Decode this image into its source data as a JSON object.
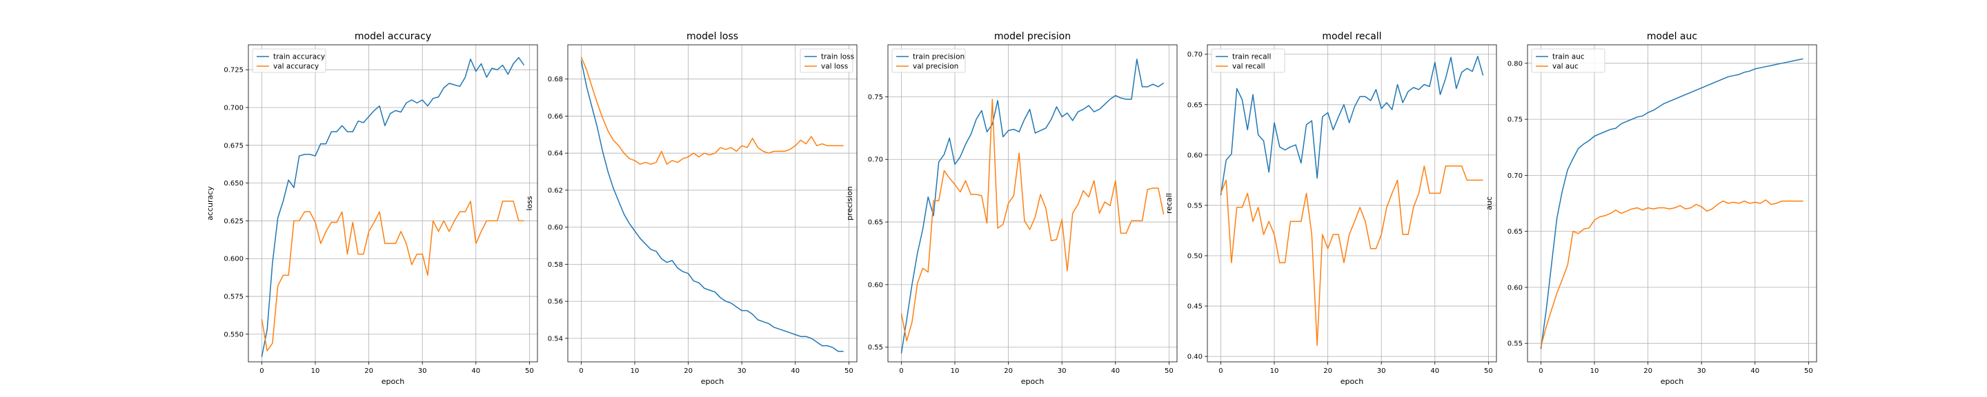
{
  "chart_data": [
    {
      "type": "line",
      "title": "model accuracy",
      "xlabel": "epoch",
      "ylabel": "accuracy",
      "xlim": [
        -2.5,
        51.5
      ],
      "ylim": [
        0.5317,
        0.7415
      ],
      "xticks": [
        0,
        10,
        20,
        30,
        40,
        50
      ],
      "yticks": [
        0.55,
        0.575,
        0.6,
        0.625,
        0.65,
        0.675,
        0.7,
        0.725
      ],
      "ytick_decimals": 3,
      "grid": true,
      "legend_position": "top-left",
      "x": [
        0,
        1,
        2,
        3,
        4,
        5,
        6,
        7,
        8,
        9,
        10,
        11,
        12,
        13,
        14,
        15,
        16,
        17,
        18,
        19,
        20,
        21,
        22,
        23,
        24,
        25,
        26,
        27,
        28,
        29,
        30,
        31,
        32,
        33,
        34,
        35,
        36,
        37,
        38,
        39,
        40,
        41,
        42,
        43,
        44,
        45,
        46,
        47,
        48,
        49
      ],
      "series": [
        {
          "name": "train accuracy",
          "color": "#1f77b4",
          "values": [
            0.535,
            0.553,
            0.597,
            0.627,
            0.638,
            0.652,
            0.647,
            0.668,
            0.669,
            0.669,
            0.668,
            0.676,
            0.676,
            0.684,
            0.684,
            0.688,
            0.684,
            0.684,
            0.691,
            0.69,
            0.694,
            0.698,
            0.701,
            0.688,
            0.696,
            0.698,
            0.697,
            0.703,
            0.705,
            0.703,
            0.705,
            0.701,
            0.706,
            0.707,
            0.713,
            0.716,
            0.715,
            0.714,
            0.72,
            0.732,
            0.724,
            0.729,
            0.72,
            0.726,
            0.725,
            0.728,
            0.722,
            0.729,
            0.733,
            0.728
          ]
        },
        {
          "name": "val accuracy",
          "color": "#ff7f0e",
          "values": [
            0.56,
            0.539,
            0.544,
            0.582,
            0.589,
            0.589,
            0.625,
            0.625,
            0.631,
            0.631,
            0.624,
            0.61,
            0.618,
            0.624,
            0.624,
            0.631,
            0.603,
            0.624,
            0.603,
            0.603,
            0.618,
            0.624,
            0.631,
            0.61,
            0.61,
            0.61,
            0.618,
            0.61,
            0.596,
            0.603,
            0.603,
            0.589,
            0.625,
            0.618,
            0.625,
            0.618,
            0.625,
            0.631,
            0.631,
            0.638,
            0.61,
            0.618,
            0.625,
            0.625,
            0.625,
            0.638,
            0.638,
            0.638,
            0.625,
            0.625
          ]
        }
      ]
    },
    {
      "type": "line",
      "title": "model loss",
      "xlabel": "epoch",
      "ylabel": "loss",
      "xlim": [
        -2.5,
        51.5
      ],
      "ylim": [
        0.5273,
        0.6985
      ],
      "xticks": [
        0,
        10,
        20,
        30,
        40,
        50
      ],
      "yticks": [
        0.54,
        0.56,
        0.58,
        0.6,
        0.62,
        0.64,
        0.66,
        0.68
      ],
      "ytick_decimals": 2,
      "grid": true,
      "legend_position": "top-right",
      "x": [
        0,
        1,
        2,
        3,
        4,
        5,
        6,
        7,
        8,
        9,
        10,
        11,
        12,
        13,
        14,
        15,
        16,
        17,
        18,
        19,
        20,
        21,
        22,
        23,
        24,
        25,
        26,
        27,
        28,
        29,
        30,
        31,
        32,
        33,
        34,
        35,
        36,
        37,
        38,
        39,
        40,
        41,
        42,
        43,
        44,
        45,
        46,
        47,
        48,
        49
      ],
      "series": [
        {
          "name": "train loss",
          "color": "#1f77b4",
          "values": [
            0.69,
            0.676,
            0.665,
            0.654,
            0.641,
            0.63,
            0.621,
            0.614,
            0.607,
            0.602,
            0.598,
            0.594,
            0.591,
            0.588,
            0.587,
            0.583,
            0.581,
            0.582,
            0.578,
            0.576,
            0.575,
            0.571,
            0.57,
            0.567,
            0.566,
            0.565,
            0.562,
            0.56,
            0.559,
            0.557,
            0.555,
            0.555,
            0.553,
            0.55,
            0.549,
            0.548,
            0.546,
            0.545,
            0.544,
            0.543,
            0.542,
            0.541,
            0.541,
            0.54,
            0.538,
            0.536,
            0.536,
            0.535,
            0.533,
            0.533
          ]
        },
        {
          "name": "val loss",
          "color": "#ff7f0e",
          "values": [
            0.692,
            0.685,
            0.676,
            0.667,
            0.659,
            0.652,
            0.647,
            0.644,
            0.64,
            0.637,
            0.636,
            0.634,
            0.635,
            0.634,
            0.635,
            0.641,
            0.634,
            0.636,
            0.635,
            0.637,
            0.638,
            0.64,
            0.638,
            0.64,
            0.639,
            0.64,
            0.643,
            0.642,
            0.643,
            0.641,
            0.644,
            0.643,
            0.648,
            0.643,
            0.641,
            0.64,
            0.641,
            0.641,
            0.641,
            0.642,
            0.644,
            0.647,
            0.645,
            0.649,
            0.644,
            0.645,
            0.644,
            0.644,
            0.644,
            0.644
          ]
        }
      ]
    },
    {
      "type": "line",
      "title": "model precision",
      "xlabel": "epoch",
      "ylabel": "precision",
      "xlim": [
        -2.5,
        51.5
      ],
      "ylim": [
        0.5383,
        0.7915
      ],
      "xticks": [
        0,
        10,
        20,
        30,
        40,
        50
      ],
      "yticks": [
        0.55,
        0.6,
        0.65,
        0.7,
        0.75
      ],
      "ytick_decimals": 2,
      "grid": true,
      "legend_position": "top-left",
      "x": [
        0,
        1,
        2,
        3,
        4,
        5,
        6,
        7,
        8,
        9,
        10,
        11,
        12,
        13,
        14,
        15,
        16,
        17,
        18,
        19,
        20,
        21,
        22,
        23,
        24,
        25,
        26,
        27,
        28,
        29,
        30,
        31,
        32,
        33,
        34,
        35,
        36,
        37,
        38,
        39,
        40,
        41,
        42,
        43,
        44,
        45,
        46,
        47,
        48,
        49
      ],
      "series": [
        {
          "name": "train precision",
          "color": "#1f77b4",
          "values": [
            0.545,
            0.572,
            0.6,
            0.625,
            0.644,
            0.67,
            0.655,
            0.698,
            0.704,
            0.717,
            0.696,
            0.702,
            0.712,
            0.72,
            0.732,
            0.739,
            0.722,
            0.728,
            0.747,
            0.718,
            0.723,
            0.724,
            0.722,
            0.732,
            0.74,
            0.721,
            0.723,
            0.725,
            0.732,
            0.742,
            0.734,
            0.737,
            0.731,
            0.738,
            0.74,
            0.743,
            0.738,
            0.74,
            0.744,
            0.748,
            0.751,
            0.749,
            0.748,
            0.748,
            0.78,
            0.758,
            0.758,
            0.76,
            0.758,
            0.761
          ]
        },
        {
          "name": "val precision",
          "color": "#ff7f0e",
          "values": [
            0.577,
            0.555,
            0.57,
            0.601,
            0.613,
            0.61,
            0.667,
            0.667,
            0.691,
            0.685,
            0.68,
            0.674,
            0.683,
            0.672,
            0.672,
            0.671,
            0.649,
            0.748,
            0.645,
            0.648,
            0.665,
            0.671,
            0.705,
            0.651,
            0.644,
            0.654,
            0.672,
            0.661,
            0.635,
            0.636,
            0.652,
            0.611,
            0.657,
            0.664,
            0.675,
            0.67,
            0.683,
            0.657,
            0.666,
            0.663,
            0.683,
            0.641,
            0.641,
            0.651,
            0.651,
            0.651,
            0.676,
            0.677,
            0.677,
            0.656
          ]
        }
      ]
    },
    {
      "type": "line",
      "title": "model recall",
      "xlabel": "epoch",
      "ylabel": "recall",
      "xlim": [
        -2.5,
        51.5
      ],
      "ylim": [
        0.3946,
        0.7094
      ],
      "xticks": [
        0,
        10,
        20,
        30,
        40,
        50
      ],
      "yticks": [
        0.4,
        0.45,
        0.5,
        0.55,
        0.6,
        0.65,
        0.7
      ],
      "ytick_decimals": 2,
      "grid": true,
      "legend_position": "top-left",
      "x": [
        0,
        1,
        2,
        3,
        4,
        5,
        6,
        7,
        8,
        9,
        10,
        11,
        12,
        13,
        14,
        15,
        16,
        17,
        18,
        19,
        20,
        21,
        22,
        23,
        24,
        25,
        26,
        27,
        28,
        29,
        30,
        31,
        32,
        33,
        34,
        35,
        36,
        37,
        38,
        39,
        40,
        41,
        42,
        43,
        44,
        45,
        46,
        47,
        48,
        49
      ],
      "series": [
        {
          "name": "train recall",
          "color": "#1f77b4",
          "values": [
            0.56,
            0.595,
            0.601,
            0.666,
            0.655,
            0.625,
            0.66,
            0.62,
            0.614,
            0.583,
            0.632,
            0.608,
            0.605,
            0.608,
            0.61,
            0.592,
            0.63,
            0.634,
            0.577,
            0.638,
            0.642,
            0.625,
            0.638,
            0.65,
            0.632,
            0.648,
            0.658,
            0.658,
            0.654,
            0.665,
            0.646,
            0.652,
            0.645,
            0.67,
            0.652,
            0.663,
            0.667,
            0.665,
            0.67,
            0.668,
            0.692,
            0.66,
            0.676,
            0.697,
            0.666,
            0.682,
            0.686,
            0.683,
            0.698,
            0.679
          ]
        },
        {
          "name": "val recall",
          "color": "#ff7f0e",
          "values": [
            0.562,
            0.575,
            0.493,
            0.548,
            0.548,
            0.562,
            0.534,
            0.548,
            0.521,
            0.534,
            0.521,
            0.493,
            0.493,
            0.534,
            0.534,
            0.534,
            0.562,
            0.521,
            0.411,
            0.521,
            0.507,
            0.521,
            0.521,
            0.493,
            0.521,
            0.534,
            0.548,
            0.534,
            0.507,
            0.507,
            0.521,
            0.548,
            0.562,
            0.575,
            0.521,
            0.521,
            0.548,
            0.562,
            0.589,
            0.562,
            0.562,
            0.562,
            0.589,
            0.589,
            0.589,
            0.589,
            0.575,
            0.575,
            0.575,
            0.575
          ]
        }
      ]
    },
    {
      "type": "line",
      "title": "model auc",
      "xlabel": "epoch",
      "ylabel": "auc",
      "xlim": [
        -2.5,
        51.5
      ],
      "ylim": [
        0.5335,
        0.8165
      ],
      "xticks": [
        0,
        10,
        20,
        30,
        40,
        50
      ],
      "yticks": [
        0.55,
        0.6,
        0.65,
        0.7,
        0.75,
        0.8
      ],
      "ytick_decimals": 2,
      "grid": true,
      "legend_position": "top-left",
      "x": [
        0,
        1,
        2,
        3,
        4,
        5,
        6,
        7,
        8,
        9,
        10,
        11,
        12,
        13,
        14,
        15,
        16,
        17,
        18,
        19,
        20,
        21,
        22,
        23,
        24,
        25,
        26,
        27,
        28,
        29,
        30,
        31,
        32,
        33,
        34,
        35,
        36,
        37,
        38,
        39,
        40,
        41,
        42,
        43,
        44,
        45,
        46,
        47,
        48,
        49
      ],
      "series": [
        {
          "name": "train auc",
          "color": "#1f77b4",
          "values": [
            0.545,
            0.58,
            0.621,
            0.662,
            0.686,
            0.705,
            0.715,
            0.724,
            0.728,
            0.731,
            0.735,
            0.737,
            0.739,
            0.741,
            0.742,
            0.746,
            0.748,
            0.75,
            0.752,
            0.753,
            0.756,
            0.758,
            0.761,
            0.764,
            0.766,
            0.768,
            0.77,
            0.772,
            0.774,
            0.776,
            0.778,
            0.78,
            0.782,
            0.784,
            0.786,
            0.788,
            0.789,
            0.79,
            0.792,
            0.793,
            0.795,
            0.796,
            0.797,
            0.798,
            0.799,
            0.8,
            0.801,
            0.802,
            0.803,
            0.804
          ]
        },
        {
          "name": "val auc",
          "color": "#ff7f0e",
          "values": [
            0.547,
            0.565,
            0.58,
            0.595,
            0.607,
            0.62,
            0.65,
            0.648,
            0.652,
            0.653,
            0.66,
            0.663,
            0.664,
            0.666,
            0.669,
            0.666,
            0.668,
            0.67,
            0.671,
            0.669,
            0.671,
            0.67,
            0.671,
            0.671,
            0.67,
            0.671,
            0.673,
            0.67,
            0.671,
            0.674,
            0.672,
            0.668,
            0.67,
            0.674,
            0.677,
            0.675,
            0.676,
            0.675,
            0.677,
            0.675,
            0.676,
            0.675,
            0.678,
            0.674,
            0.675,
            0.677,
            0.677,
            0.677,
            0.677,
            0.677
          ]
        }
      ]
    }
  ]
}
